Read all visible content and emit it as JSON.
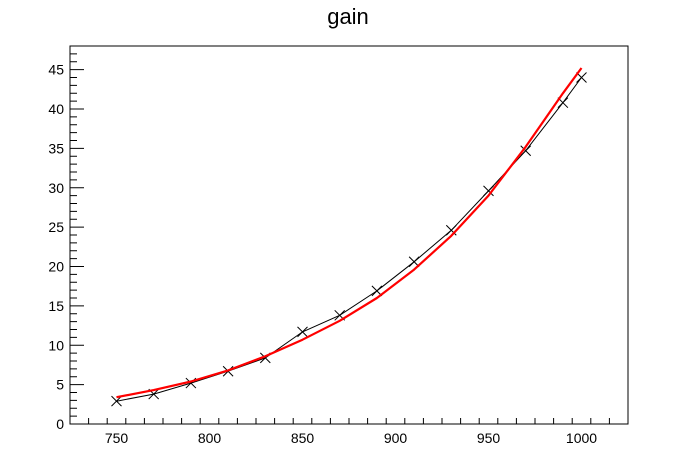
{
  "chart_data": {
    "type": "line",
    "title": "gain",
    "xlabel": "",
    "ylabel": "",
    "xlim": [
      725,
      1025
    ],
    "ylim": [
      0,
      48
    ],
    "x_ticks": [
      750,
      800,
      850,
      900,
      950,
      1000
    ],
    "y_ticks": [
      0,
      5,
      10,
      15,
      20,
      25,
      30,
      35,
      40,
      45
    ],
    "grid": false,
    "series": [
      {
        "kind": "data",
        "marker": "x",
        "color": "#000000",
        "x": [
          750,
          770,
          790,
          810,
          830,
          850,
          870,
          890,
          910,
          930,
          950,
          970,
          990,
          1000
        ],
        "y": [
          2.9,
          3.8,
          5.2,
          6.7,
          8.4,
          11.7,
          13.8,
          16.9,
          20.6,
          24.6,
          29.6,
          34.7,
          40.8,
          44.0
        ]
      },
      {
        "kind": "fit",
        "color": "#ff0000",
        "x": [
          750,
          770,
          790,
          810,
          830,
          850,
          870,
          890,
          910,
          930,
          950,
          970,
          990,
          1000
        ],
        "y": [
          3.4,
          4.3,
          5.4,
          6.8,
          8.6,
          10.7,
          13.1,
          16.0,
          19.6,
          23.9,
          29.0,
          35.2,
          42.0,
          45.2
        ]
      }
    ]
  }
}
